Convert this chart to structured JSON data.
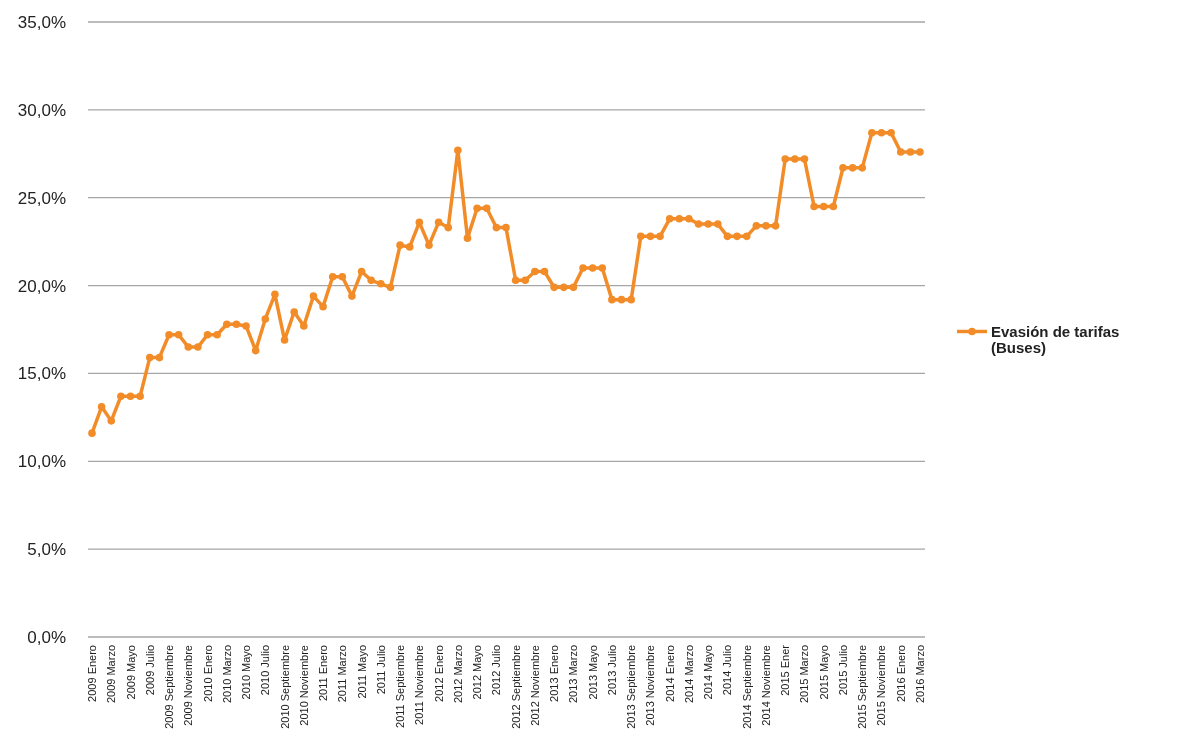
{
  "chart_data": {
    "type": "line",
    "categories": [
      "2009 Enero",
      null,
      "2009 Marzo",
      null,
      "2009 Mayo",
      null,
      "2009 Julio",
      null,
      "2009 Septiembre",
      null,
      "2009 Noviembre",
      null,
      "2010 Enero",
      null,
      "2010 Marzo",
      null,
      "2010 Mayo",
      null,
      "2010 Julio",
      null,
      "2010 Septiembre",
      null,
      "2010 Noviembre",
      null,
      "2011 Enero",
      null,
      "2011 Marzo",
      null,
      "2011 Mayo",
      null,
      "2011 Julio",
      null,
      "2011 Septiembre",
      null,
      "2011 Noviembre",
      null,
      "2012 Enero",
      null,
      "2012 Marzo",
      null,
      "2012 Mayo",
      null,
      "2012 Julio",
      null,
      "2012 Septiembre",
      null,
      "2012 Noviembre",
      null,
      "2013 Enero",
      null,
      "2013 Marzo",
      null,
      "2013 Mayo",
      null,
      "2013 Julio",
      null,
      "2013 Septiembre",
      null,
      "2013 Noviembre",
      null,
      "2014 Enero",
      null,
      "2014 Marzo",
      null,
      "2014 Mayo",
      null,
      "2014 Julio",
      null,
      "2014 Septiembre",
      null,
      "2014 Noviembre",
      null,
      "2015 Ener",
      null,
      "2015 Marzo",
      null,
      "2015 Mayo",
      null,
      "2015 Julio",
      null,
      "2015 Septiembre",
      null,
      "2015 Noviembre",
      null,
      "2016 Enero",
      null,
      "2016 Marzo"
    ],
    "series": [
      {
        "name": "Evasión de tarifas (Buses)",
        "color": "#f28c28",
        "values": [
          11.6,
          13.1,
          12.3,
          13.7,
          13.7,
          13.7,
          15.9,
          15.9,
          17.2,
          17.2,
          16.5,
          16.5,
          17.2,
          17.2,
          17.8,
          17.8,
          17.7,
          16.3,
          18.1,
          19.5,
          16.9,
          18.5,
          17.7,
          19.4,
          18.8,
          20.5,
          20.5,
          19.4,
          20.8,
          20.3,
          20.1,
          19.9,
          22.3,
          22.2,
          23.6,
          22.3,
          23.6,
          23.3,
          27.7,
          22.7,
          24.4,
          24.4,
          23.3,
          23.3,
          20.3,
          20.3,
          20.8,
          20.8,
          19.9,
          19.9,
          19.9,
          21.0,
          21.0,
          21.0,
          19.2,
          19.2,
          19.2,
          22.8,
          22.8,
          22.8,
          23.8,
          23.8,
          23.8,
          23.5,
          23.5,
          23.5,
          22.8,
          22.8,
          22.8,
          23.4,
          23.4,
          23.4,
          27.2,
          27.2,
          27.2,
          24.5,
          24.5,
          24.5,
          26.7,
          26.7,
          26.7,
          28.7,
          28.7,
          28.7,
          27.6,
          27.6,
          27.6
        ]
      }
    ],
    "ylim": [
      0,
      35
    ],
    "yticks": [
      {
        "value": 0,
        "label": "0,0%"
      },
      {
        "value": 5,
        "label": "5,0%"
      },
      {
        "value": 10,
        "label": "10,0%"
      },
      {
        "value": 15,
        "label": "15,0%"
      },
      {
        "value": 20,
        "label": "20,0%"
      },
      {
        "value": 25,
        "label": "25,0%"
      },
      {
        "value": 30,
        "label": "30,0%"
      },
      {
        "value": 35,
        "label": "35,0%"
      }
    ],
    "grid": "y",
    "legend": "right",
    "marker": "circle",
    "line_style": "solid"
  }
}
